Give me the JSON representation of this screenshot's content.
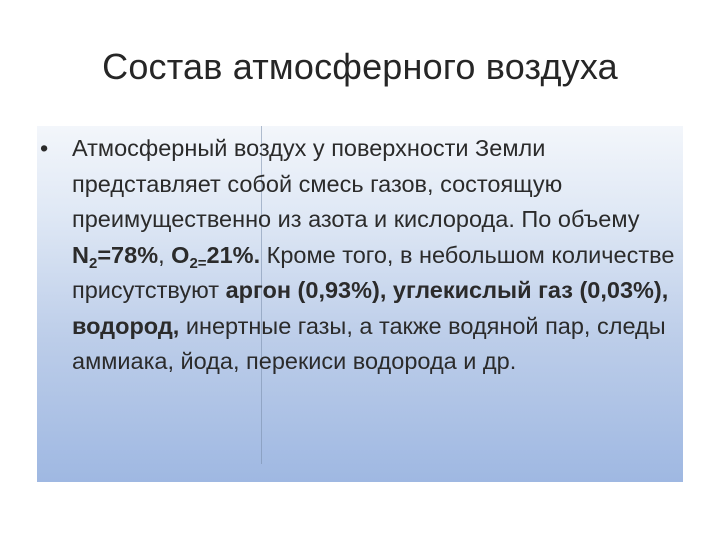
{
  "slide": {
    "title": "Состав атмосферного воздуха",
    "bullet_symbol": "•",
    "paragraph": {
      "t1": "Атмосферный воздух у поверхности Земли представляет собой смесь газов, состоящую преимущественно из азота и кислорода. По объему ",
      "n_symbol": "N",
      "n_sub": "2",
      "n_value": "=78%",
      "comma1": ", ",
      "o_symbol": "O",
      "o_sub": "2=",
      "o_value": "21%.",
      "t2": " Кроме того, в небольшом количестве присутствуют ",
      "argon": "аргон (0,93%), углекислый газ (0,03%), водород,",
      "t3": " инертные газы, а также водяной пар, следы аммиака, йода, перекиси водорода и др."
    }
  },
  "colors": {
    "panel_top": "#f3f6fb",
    "panel_bottom": "#9fb8e2",
    "text": "#2b2b2b"
  }
}
